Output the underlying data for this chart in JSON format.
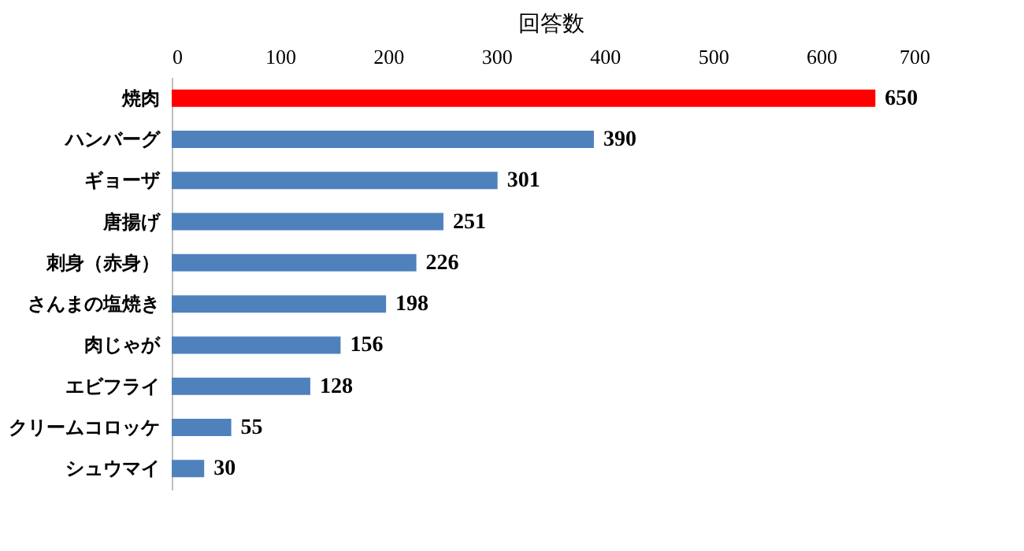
{
  "chart_data": {
    "type": "bar",
    "orientation": "horizontal",
    "xlabel": "回答数",
    "categories": [
      "焼肉",
      "ハンバーグ",
      "ギョーザ",
      "唐揚げ",
      "刺身（赤身）",
      "さんまの塩焼き",
      "肉じゃが",
      "エビフライ",
      "クリームコロッケ",
      "シュウマイ"
    ],
    "values": [
      650,
      390,
      301,
      251,
      226,
      198,
      156,
      128,
      55,
      30
    ],
    "colors": [
      "#ff0000",
      "#4f81bd",
      "#4f81bd",
      "#4f81bd",
      "#4f81bd",
      "#4f81bd",
      "#4f81bd",
      "#4f81bd",
      "#4f81bd",
      "#4f81bd"
    ],
    "xlim": [
      0,
      700
    ],
    "xticks": [
      0,
      100,
      200,
      300,
      400,
      500,
      600,
      700
    ],
    "data_labels": true,
    "grid": false
  }
}
